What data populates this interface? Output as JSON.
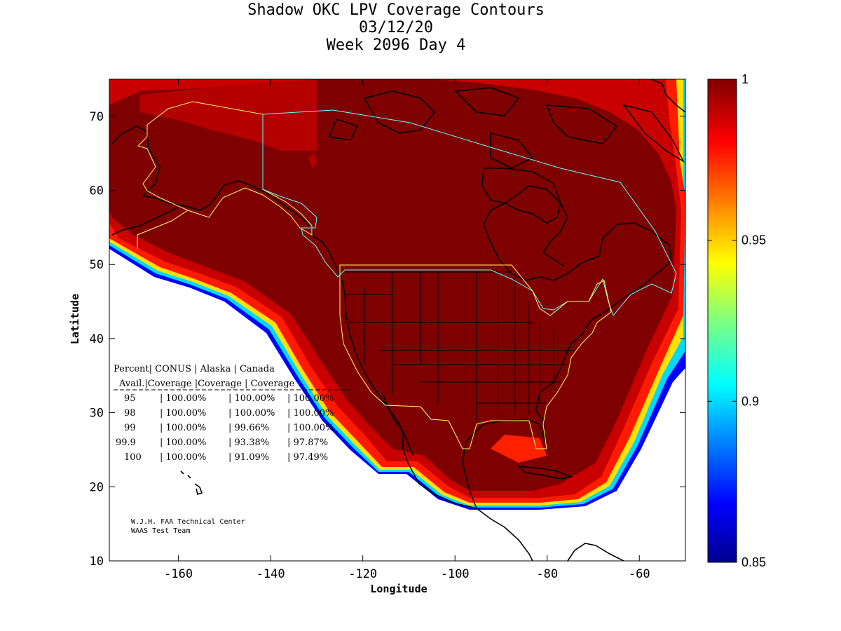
{
  "title": {
    "line1": "Shadow OKC LPV Coverage Contours",
    "line2": "03/12/20",
    "line3": "Week 2096 Day 4"
  },
  "axes": {
    "xlabel": "Longitude",
    "ylabel": "Latitude",
    "xticks": [
      "-160",
      "-140",
      "-120",
      "-100",
      "-80",
      "-60"
    ],
    "yticks": [
      "10",
      "20",
      "30",
      "40",
      "50",
      "60",
      "70"
    ],
    "xlim": [
      -175,
      -50
    ],
    "ylim": [
      10,
      75
    ]
  },
  "colorbar": {
    "ticks": [
      "1",
      "0.95",
      "0.9",
      "0.85"
    ],
    "range": [
      0.85,
      1
    ]
  },
  "coverage_table": {
    "header1": [
      "Percent",
      "CONUS",
      "Alaska",
      "Canada"
    ],
    "header2": [
      "Avail.",
      "Coverage",
      "Coverage",
      "Coverage"
    ],
    "rows": [
      [
        "95",
        "100.00%",
        "100.00%",
        "100.00%"
      ],
      [
        "98",
        "100.00%",
        "100.00%",
        "100.00%"
      ],
      [
        "99",
        "100.00%",
        "99.66%",
        "100.00%"
      ],
      [
        "99.9",
        "100.00%",
        "93.38%",
        "97.87%"
      ],
      [
        "100",
        "100.00%",
        "91.09%",
        "97.49%"
      ]
    ]
  },
  "credit": {
    "line1": "W.J.H. FAA Technical Center",
    "line2": "WAAS Test Team"
  },
  "colors": {
    "full_coverage": "#7f0000",
    "high": "#b40000",
    "edge_red": "#ff1a00",
    "alaska_boundary": "#ffff66",
    "canada_boundary": "#66ffff"
  }
}
